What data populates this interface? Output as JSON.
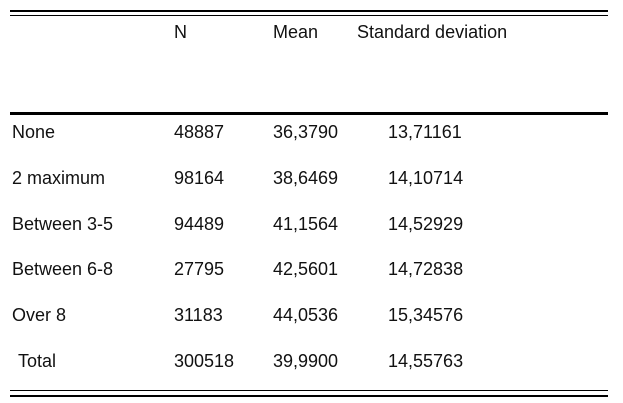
{
  "table": {
    "header": [
      "N",
      "Mean",
      "Standard deviation"
    ],
    "rows": [
      [
        "None",
        "48887",
        "36,3790",
        "13,71161"
      ],
      [
        "2 maximum",
        "98164",
        "38,6469",
        "14,10714"
      ],
      [
        "Between 3-5",
        "94489",
        "41,1564",
        "14,52929"
      ],
      [
        "Between 6-8",
        "27795",
        "42,5601",
        "14,72838"
      ],
      [
        "Over 8",
        "31183",
        "44,0536",
        "15,34576"
      ],
      [
        "Total",
        "300518",
        "39,9900",
        "14,55763"
      ]
    ]
  }
}
